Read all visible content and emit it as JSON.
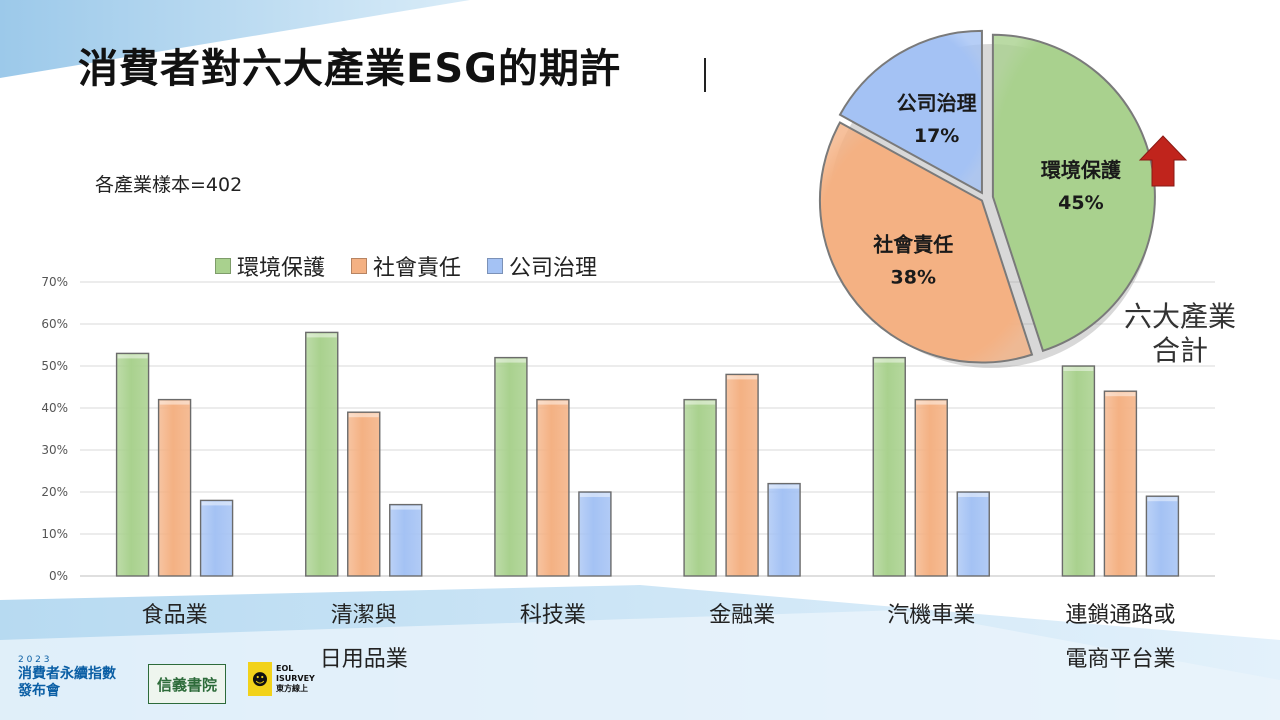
{
  "slide": {
    "title": "消費者對六大產業ESG的期許",
    "sample_note": "各產業樣本=402"
  },
  "legend": [
    {
      "label": "環境保護",
      "color": "#a9d18e"
    },
    {
      "label": "社會責任",
      "color": "#f4b183"
    },
    {
      "label": "公司治理",
      "color": "#a4c2f4"
    }
  ],
  "chart_data": [
    {
      "type": "bar",
      "title": "",
      "categories": [
        {
          "line1": "食品業",
          "line2": ""
        },
        {
          "line1": "清潔與",
          "line2": "日用品業"
        },
        {
          "line1": "科技業",
          "line2": ""
        },
        {
          "line1": "金融業",
          "line2": ""
        },
        {
          "line1": "汽機車業",
          "line2": ""
        },
        {
          "line1": "連鎖通路或",
          "line2": "電商平台業"
        }
      ],
      "series": [
        {
          "name": "環境保護",
          "color": "#a9d18e",
          "values": [
            53,
            58,
            52,
            42,
            52,
            50
          ]
        },
        {
          "name": "社會責任",
          "color": "#f4b183",
          "values": [
            42,
            39,
            42,
            48,
            42,
            44
          ]
        },
        {
          "name": "公司治理",
          "color": "#a4c2f4",
          "values": [
            18,
            17,
            20,
            22,
            20,
            19
          ]
        }
      ],
      "ylim": [
        0,
        70
      ],
      "yticks": [
        "0%",
        "10%",
        "20%",
        "30%",
        "40%",
        "50%",
        "60%",
        "70%"
      ],
      "grid": true,
      "legend_position": "top"
    },
    {
      "type": "pie",
      "title_lines": [
        "六大產業",
        "合計"
      ],
      "slices": [
        {
          "label": "環境保護",
          "value": 45,
          "text": "45%",
          "color": "#a9d18e"
        },
        {
          "label": "社會責任",
          "value": 38,
          "text": "38%",
          "color": "#f4b183"
        },
        {
          "label": "公司治理",
          "value": 17,
          "text": "17%",
          "color": "#a4c2f4"
        }
      ]
    }
  ],
  "footer": {
    "logo_main_year": "2 0 2 3",
    "logo_main_line1": "消費者永續指數",
    "logo_main_line2": "發布會",
    "logo_b": "信義書院",
    "logo_c_line1": "EOL",
    "logo_c_line2": "ISURVEY",
    "logo_c_line3": "東方線上"
  }
}
